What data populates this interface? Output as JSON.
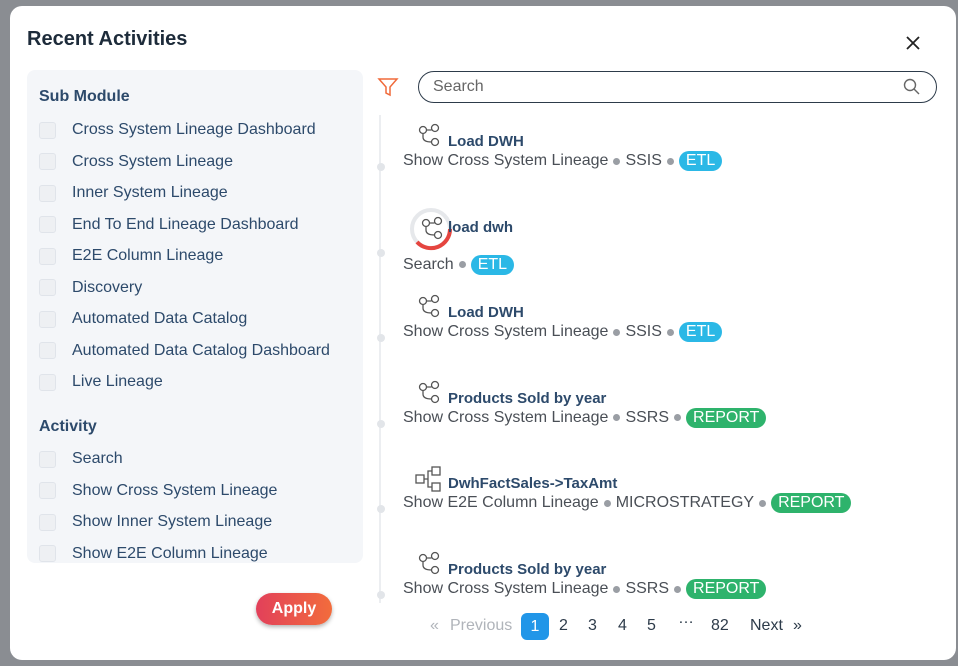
{
  "header": {
    "title": "Recent Activities"
  },
  "filters": {
    "sub_module": {
      "title": "Sub Module",
      "options": [
        "Cross System Lineage Dashboard",
        "Cross System Lineage",
        "Inner System Lineage",
        "End To End Lineage Dashboard",
        "E2E Column Lineage",
        "Discovery",
        "Automated Data Catalog",
        "Automated Data Catalog Dashboard",
        "Live Lineage"
      ]
    },
    "activity": {
      "title": "Activity",
      "options": [
        "Search",
        "Show Cross System Lineage",
        "Show Inner System Lineage",
        "Show E2E Column Lineage"
      ]
    },
    "apply": "Apply"
  },
  "search": {
    "placeholder": "Search"
  },
  "activities": [
    {
      "title": "Load DWH",
      "action": "Show Cross System Lineage",
      "source": "SSIS",
      "tag": "ETL"
    },
    {
      "title": "load dwh",
      "action": "Search",
      "tag": "ETL"
    },
    {
      "title": "Load DWH",
      "action": "Show Cross System Lineage",
      "source": "SSIS",
      "tag": "ETL"
    },
    {
      "title": "Products Sold by year",
      "action": "Show Cross System Lineage",
      "source": "SSRS",
      "tag": "REPORT"
    },
    {
      "title": "DwhFactSales->TaxAmt",
      "action": "Show E2E Column Lineage",
      "source": "MICROSTRATEGY",
      "tag": "REPORT"
    },
    {
      "title": "Products Sold by year",
      "action": "Show Cross System Lineage",
      "source": "SSRS",
      "tag": "REPORT"
    }
  ],
  "pagination": {
    "previous_arrow": "«",
    "previous": "Previous",
    "pages": [
      "1",
      "2",
      "3",
      "4",
      "5"
    ],
    "ellipsis": "…",
    "last": "82",
    "next": "Next",
    "next_arrow": "»"
  }
}
